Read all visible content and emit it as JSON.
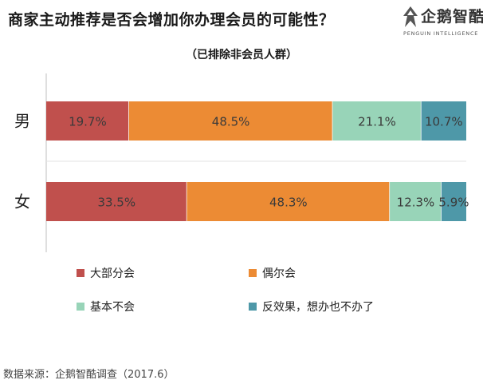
{
  "header": {
    "title": "商家主动推荐是否会增加你办理会员的可能性？",
    "subtitle": "（已排除非会员人群）"
  },
  "logo": {
    "cn": "企鹅智酷",
    "en": "PENGUIN INTELLIGENCE"
  },
  "source": "数据来源：企鹅智酷调查（2017.6）",
  "chart_data": {
    "type": "bar",
    "orientation": "horizontal-stacked-100",
    "title": "商家主动推荐是否会增加你办理会员的可能性？",
    "subtitle": "（已排除非会员人群）",
    "categories": [
      "男",
      "女"
    ],
    "series": [
      {
        "name": "大部分会",
        "color": "#c0504d",
        "values": [
          19.7,
          33.5
        ],
        "labels": [
          "19.7%",
          "33.5%"
        ]
      },
      {
        "name": "偶尔会",
        "color": "#ec8b34",
        "values": [
          48.5,
          48.3
        ],
        "labels": [
          "48.5%",
          "48.3%"
        ]
      },
      {
        "name": "基本不会",
        "color": "#98d4b8",
        "values": [
          21.1,
          12.3
        ],
        "labels": [
          "21.1%",
          "12.3%"
        ]
      },
      {
        "name": "反效果，想办也不办了",
        "color": "#4e98a8",
        "values": [
          10.7,
          5.9
        ],
        "labels": [
          "10.7%",
          "5.9%"
        ]
      }
    ],
    "xlim": [
      0,
      100
    ],
    "grid": false,
    "legend": "bottom"
  }
}
